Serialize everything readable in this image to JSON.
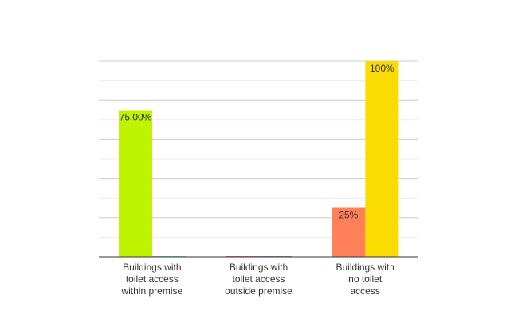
{
  "chart_data": {
    "type": "bar",
    "categories": [
      [
        "Buildings with",
        "toilet access",
        "within premise"
      ],
      [
        "Buildings with",
        "toilet access",
        "outside premise"
      ],
      [
        "Buildings with",
        "no toilet",
        "access"
      ]
    ],
    "ylim": [
      0,
      100
    ],
    "grid": true,
    "legend": "none",
    "series": [
      {
        "colors": [
          "#BEF400",
          "#F66A8E",
          "#FF8059"
        ],
        "values": [
          75,
          0,
          25
        ],
        "labels": [
          "75.00%",
          "",
          "25%"
        ]
      },
      {
        "colors": [
          "#6FDCE6",
          "#8E8EE5",
          "#FBDC00"
        ],
        "values": [
          0,
          0,
          100
        ],
        "labels": [
          "",
          "",
          "100%"
        ]
      }
    ]
  }
}
